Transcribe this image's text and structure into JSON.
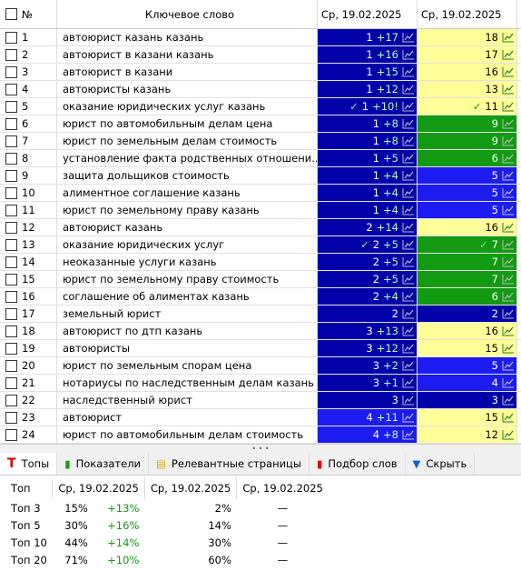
{
  "header": {
    "num": "№",
    "keyword": "Ключевое слово",
    "date1": "Ср, 19.02.2025",
    "date2": "Ср, 19.02.2025"
  },
  "rows": [
    {
      "num": "1",
      "keyword": "автоюрист казань казань",
      "pos": "1",
      "change": "+17",
      "pos_color": "#0000a8",
      "right": "18",
      "right_color": "#ffff99"
    },
    {
      "num": "2",
      "keyword": "автоюрист в казани казань",
      "pos": "1",
      "change": "+16",
      "pos_color": "#0000a8",
      "right": "17",
      "right_color": "#ffff99"
    },
    {
      "num": "3",
      "keyword": "автоюрист в казани",
      "pos": "1",
      "change": "+15",
      "pos_color": "#0000a8",
      "right": "16",
      "right_color": "#ffff99"
    },
    {
      "num": "4",
      "keyword": "автоюристы казань",
      "pos": "1",
      "change": "+12",
      "pos_color": "#0000a8",
      "right": "13",
      "right_color": "#ffff99"
    },
    {
      "num": "5",
      "keyword": "оказание юридических услуг казань",
      "pos": "1",
      "change": "+10!",
      "check": true,
      "pos_color": "#0000a8",
      "right": "11",
      "right_color": "#ffff99"
    },
    {
      "num": "6",
      "keyword": "юрист по автомобильным делам цена",
      "pos": "1",
      "change": "+8",
      "pos_color": "#0000a8",
      "right": "9",
      "right_color": "#129a12"
    },
    {
      "num": "7",
      "keyword": "юрист по земельным делам стоимость",
      "pos": "1",
      "change": "+8",
      "pos_color": "#0000a8",
      "right": "9",
      "right_color": "#129a12"
    },
    {
      "num": "8",
      "keyword": "установление факта родственных отношени...",
      "pos": "1",
      "change": "+5",
      "pos_color": "#0000a8",
      "right": "6",
      "right_color": "#129a12"
    },
    {
      "num": "9",
      "keyword": "защита дольщиков стоимость",
      "pos": "1",
      "change": "+4",
      "pos_color": "#0000a8",
      "right": "5",
      "right_color": "#1c1cf0"
    },
    {
      "num": "10",
      "keyword": "алиментное соглашение казань",
      "pos": "1",
      "change": "+4",
      "pos_color": "#0000a8",
      "right": "5",
      "right_color": "#1c1cf0"
    },
    {
      "num": "11",
      "keyword": "юрист по земельному праву казань",
      "pos": "1",
      "change": "+4",
      "pos_color": "#0000a8",
      "right": "5",
      "right_color": "#1c1cf0"
    },
    {
      "num": "12",
      "keyword": "автоюрист казань",
      "pos": "2",
      "change": "+14",
      "pos_color": "#0000a8",
      "right": "16",
      "right_color": "#ffff99"
    },
    {
      "num": "13",
      "keyword": "оказание юридических услуг",
      "pos": "2",
      "change": "+5",
      "check": true,
      "pos_color": "#0000a8",
      "right": "7",
      "right_color": "#129a12"
    },
    {
      "num": "14",
      "keyword": "неоказанные услуги казань",
      "pos": "2",
      "change": "+5",
      "pos_color": "#0000a8",
      "right": "7",
      "right_color": "#129a12"
    },
    {
      "num": "15",
      "keyword": "юрист по земельному праву стоимость",
      "pos": "2",
      "change": "+5",
      "pos_color": "#0000a8",
      "right": "7",
      "right_color": "#129a12"
    },
    {
      "num": "16",
      "keyword": "соглашение об алиментах казань",
      "pos": "2",
      "change": "+4",
      "pos_color": "#0000a8",
      "right": "6",
      "right_color": "#129a12"
    },
    {
      "num": "17",
      "keyword": "земельный юрист",
      "pos": "2",
      "pos_color": "#0000a8",
      "right": "2",
      "right_color": "#0000a8"
    },
    {
      "num": "18",
      "keyword": "автоюрист по дтп казань",
      "pos": "3",
      "change": "+13",
      "pos_color": "#0000a8",
      "right": "16",
      "right_color": "#ffff99"
    },
    {
      "num": "19",
      "keyword": "автоюристы",
      "pos": "3",
      "change": "+12",
      "pos_color": "#0000a8",
      "right": "15",
      "right_color": "#ffff99"
    },
    {
      "num": "20",
      "keyword": "юрист по земельным спорам цена",
      "pos": "3",
      "change": "+2",
      "pos_color": "#0000a8",
      "right": "5",
      "right_color": "#1c1cf0"
    },
    {
      "num": "21",
      "keyword": "нотариусы по наследственным делам казань",
      "pos": "3",
      "change": "+1",
      "pos_color": "#0000a8",
      "right": "4",
      "right_color": "#1c1cf0"
    },
    {
      "num": "22",
      "keyword": "наследственный юрист",
      "pos": "3",
      "pos_color": "#0000a8",
      "right": "3",
      "right_color": "#0000a8"
    },
    {
      "num": "23",
      "keyword": "автоюрист",
      "pos": "4",
      "change": "+11",
      "pos_color": "#1c1cf0",
      "right": "15",
      "right_color": "#ffff99"
    },
    {
      "num": "24",
      "keyword": "юрист по автомобильным делам стоимость",
      "pos": "4",
      "change": "+8",
      "pos_color": "#1c1cf0",
      "right": "12",
      "right_color": "#ffff99"
    }
  ],
  "tabs": [
    "Топы",
    "Показатели",
    "Релевантные страницы",
    "Подбор слов",
    "Скрыть"
  ],
  "tops": {
    "header": [
      "Топ",
      "Ср, 19.02.2025",
      "Ср, 19.02.2025",
      "Ср, 19.02.2025"
    ],
    "rows": [
      [
        "Топ 3",
        "15%",
        "+13%",
        "2%",
        "—"
      ],
      [
        "Топ 5",
        "30%",
        "+16%",
        "14%",
        "—"
      ],
      [
        "Топ 10",
        "44%",
        "+14%",
        "30%",
        "—"
      ],
      [
        "Топ 20",
        "71%",
        "+10%",
        "60%",
        "—"
      ]
    ]
  }
}
